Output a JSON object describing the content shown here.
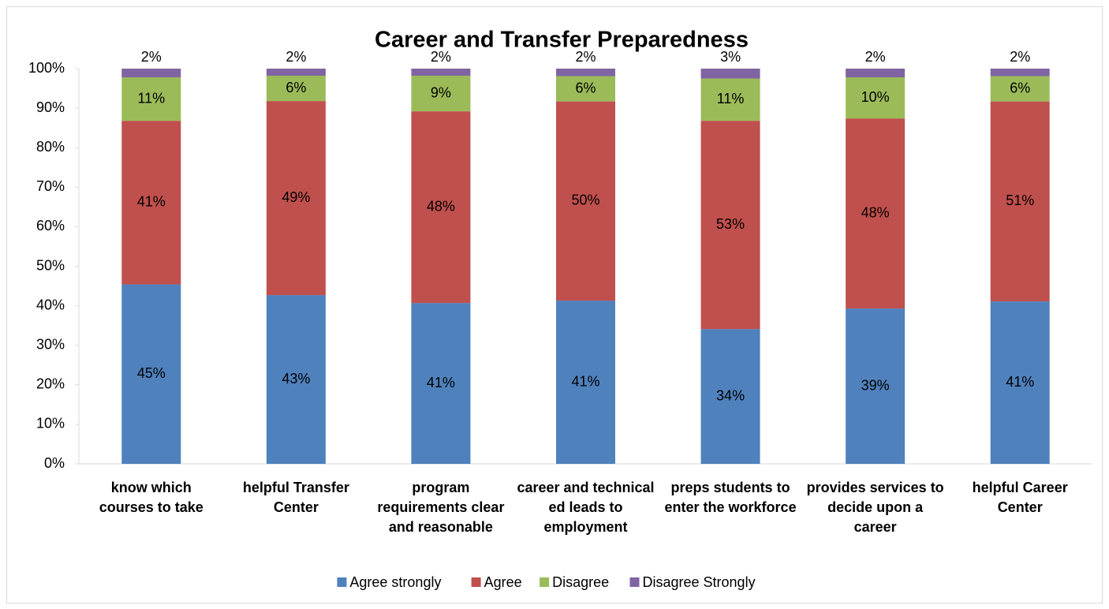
{
  "chart_data": {
    "type": "stacked_bar",
    "title": "Career and Transfer Preparedness",
    "categories": [
      "know which courses to take",
      "helpful Transfer Center",
      "program requirements clear and reasonable",
      "career and technical ed leads to employment",
      "preps students to enter the workforce",
      "provides services to decide upon a career",
      "helpful Career Center"
    ],
    "series": [
      {
        "name": "Agree strongly",
        "color": "#4f81bd",
        "values": [
          45.4,
          42.7,
          40.7,
          41.3,
          34.1,
          39.3,
          41.1
        ],
        "value_labels": [
          "45%",
          "43%",
          "41%",
          "41%",
          "34%",
          "39%",
          "41%"
        ]
      },
      {
        "name": "Agree",
        "color": "#c0504d",
        "values": [
          41.4,
          49.1,
          48.5,
          50.4,
          52.7,
          48.1,
          50.6
        ],
        "value_labels": [
          "41%",
          "49%",
          "48%",
          "50%",
          "53%",
          "48%",
          "51%"
        ]
      },
      {
        "name": "Disagree",
        "color": "#9bbb59",
        "values": [
          11.0,
          6.4,
          9.0,
          6.4,
          10.7,
          10.4,
          6.4
        ],
        "value_labels": [
          "11%",
          "6%",
          "9%",
          "6%",
          "11%",
          "10%",
          "6%"
        ]
      },
      {
        "name": "Disagree Strongly",
        "color": "#8064a2",
        "values": [
          2.2,
          1.8,
          1.8,
          1.9,
          2.5,
          2.2,
          1.9
        ],
        "value_labels": [
          "2%",
          "2%",
          "2%",
          "2%",
          "3%",
          "2%",
          "2%"
        ]
      }
    ],
    "ylim": [
      0,
      100
    ],
    "yticks": [
      {
        "value": 0,
        "label": "0%"
      },
      {
        "value": 10,
        "label": "10%"
      },
      {
        "value": 20,
        "label": "20%"
      },
      {
        "value": 30,
        "label": "30%"
      },
      {
        "value": 40,
        "label": "40%"
      },
      {
        "value": 50,
        "label": "50%"
      },
      {
        "value": 60,
        "label": "60%"
      },
      {
        "value": 70,
        "label": "70%"
      },
      {
        "value": 80,
        "label": "80%"
      },
      {
        "value": 90,
        "label": "90%"
      },
      {
        "value": 100,
        "label": "100%"
      }
    ],
    "legend": "bottom"
  }
}
